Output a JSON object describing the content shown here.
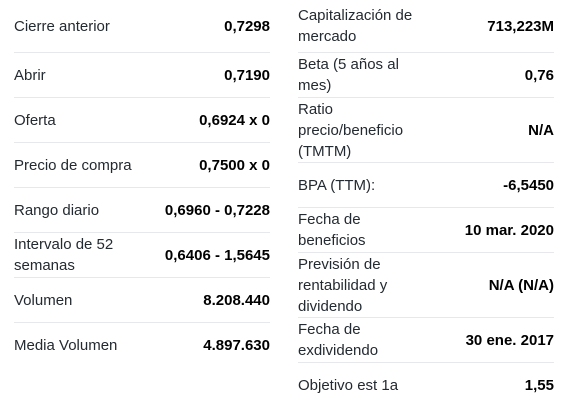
{
  "left": [
    {
      "label": "Cierre anterior",
      "value": "0,7298"
    },
    {
      "label": "Abrir",
      "value": "0,7190"
    },
    {
      "label": "Oferta",
      "value": "0,6924 x 0"
    },
    {
      "label": "Precio de compra",
      "value": "0,7500 x 0"
    },
    {
      "label": "Rango diario",
      "value": "0,6960 - 0,7228"
    },
    {
      "label": "Intervalo de 52 semanas",
      "value": "0,6406 - 1,5645"
    },
    {
      "label": "Volumen",
      "value": "8.208.440"
    },
    {
      "label": "Media Volumen",
      "value": "4.897.630"
    }
  ],
  "right": [
    {
      "label": "Capitalización de mercado",
      "value": "713,223M"
    },
    {
      "label": "Beta (5 años al mes)",
      "value": "0,76"
    },
    {
      "label": "Ratio precio/beneficio (TMTM)",
      "value": "N/A"
    },
    {
      "label": "BPA (TTM):",
      "value": "-6,5450"
    },
    {
      "label": "Fecha de beneficios",
      "value": "10 mar. 2020"
    },
    {
      "label": "Previsión de rentabilidad y dividendo",
      "value": "N/A (N/A)"
    },
    {
      "label": "Fecha de exdividendo",
      "value": "30 ene. 2017"
    },
    {
      "label": "Objetivo est 1a",
      "value": "1,55"
    }
  ]
}
